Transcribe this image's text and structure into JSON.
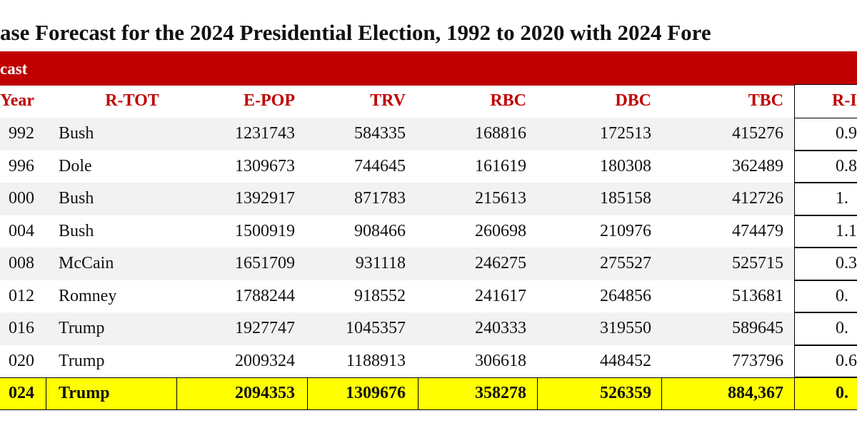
{
  "header": {
    "title": "ase Forecast for the 2024 Presidential Election, 1992 to 2020 with 2024 Fore",
    "banner": "cast"
  },
  "table": {
    "headers": [
      "Year",
      "R-TOT",
      "E-POP",
      "TRV",
      "RBC",
      "DBC",
      "TBC",
      "R-I"
    ],
    "rows": [
      [
        "992",
        "Bush",
        "1231743",
        "584335",
        "168816",
        "172513",
        "415276",
        "0.9"
      ],
      [
        "996",
        "Dole",
        "1309673",
        "744645",
        "161619",
        "180308",
        "362489",
        "0.8"
      ],
      [
        "000",
        "Bush",
        "1392917",
        "871783",
        "215613",
        "185158",
        "412726",
        "1."
      ],
      [
        "004",
        "Bush",
        "1500919",
        "908466",
        "260698",
        "210976",
        "474479",
        "1.1"
      ],
      [
        "008",
        "McCain",
        "1651709",
        "931118",
        "246275",
        "275527",
        "525715",
        "0.3"
      ],
      [
        "012",
        "Romney",
        "1788244",
        "918552",
        "241617",
        "264856",
        "513681",
        "0."
      ],
      [
        "016",
        "Trump",
        "1927747",
        "1045357",
        "240333",
        "319550",
        "589645",
        "0."
      ],
      [
        "020",
        "Trump",
        "2009324",
        "1188913",
        "306618",
        "448452",
        "773796",
        "0.6"
      ],
      [
        "024",
        "Trump",
        "2094353",
        "1309676",
        "358278",
        "526359",
        "884,367",
        "0."
      ]
    ]
  }
}
